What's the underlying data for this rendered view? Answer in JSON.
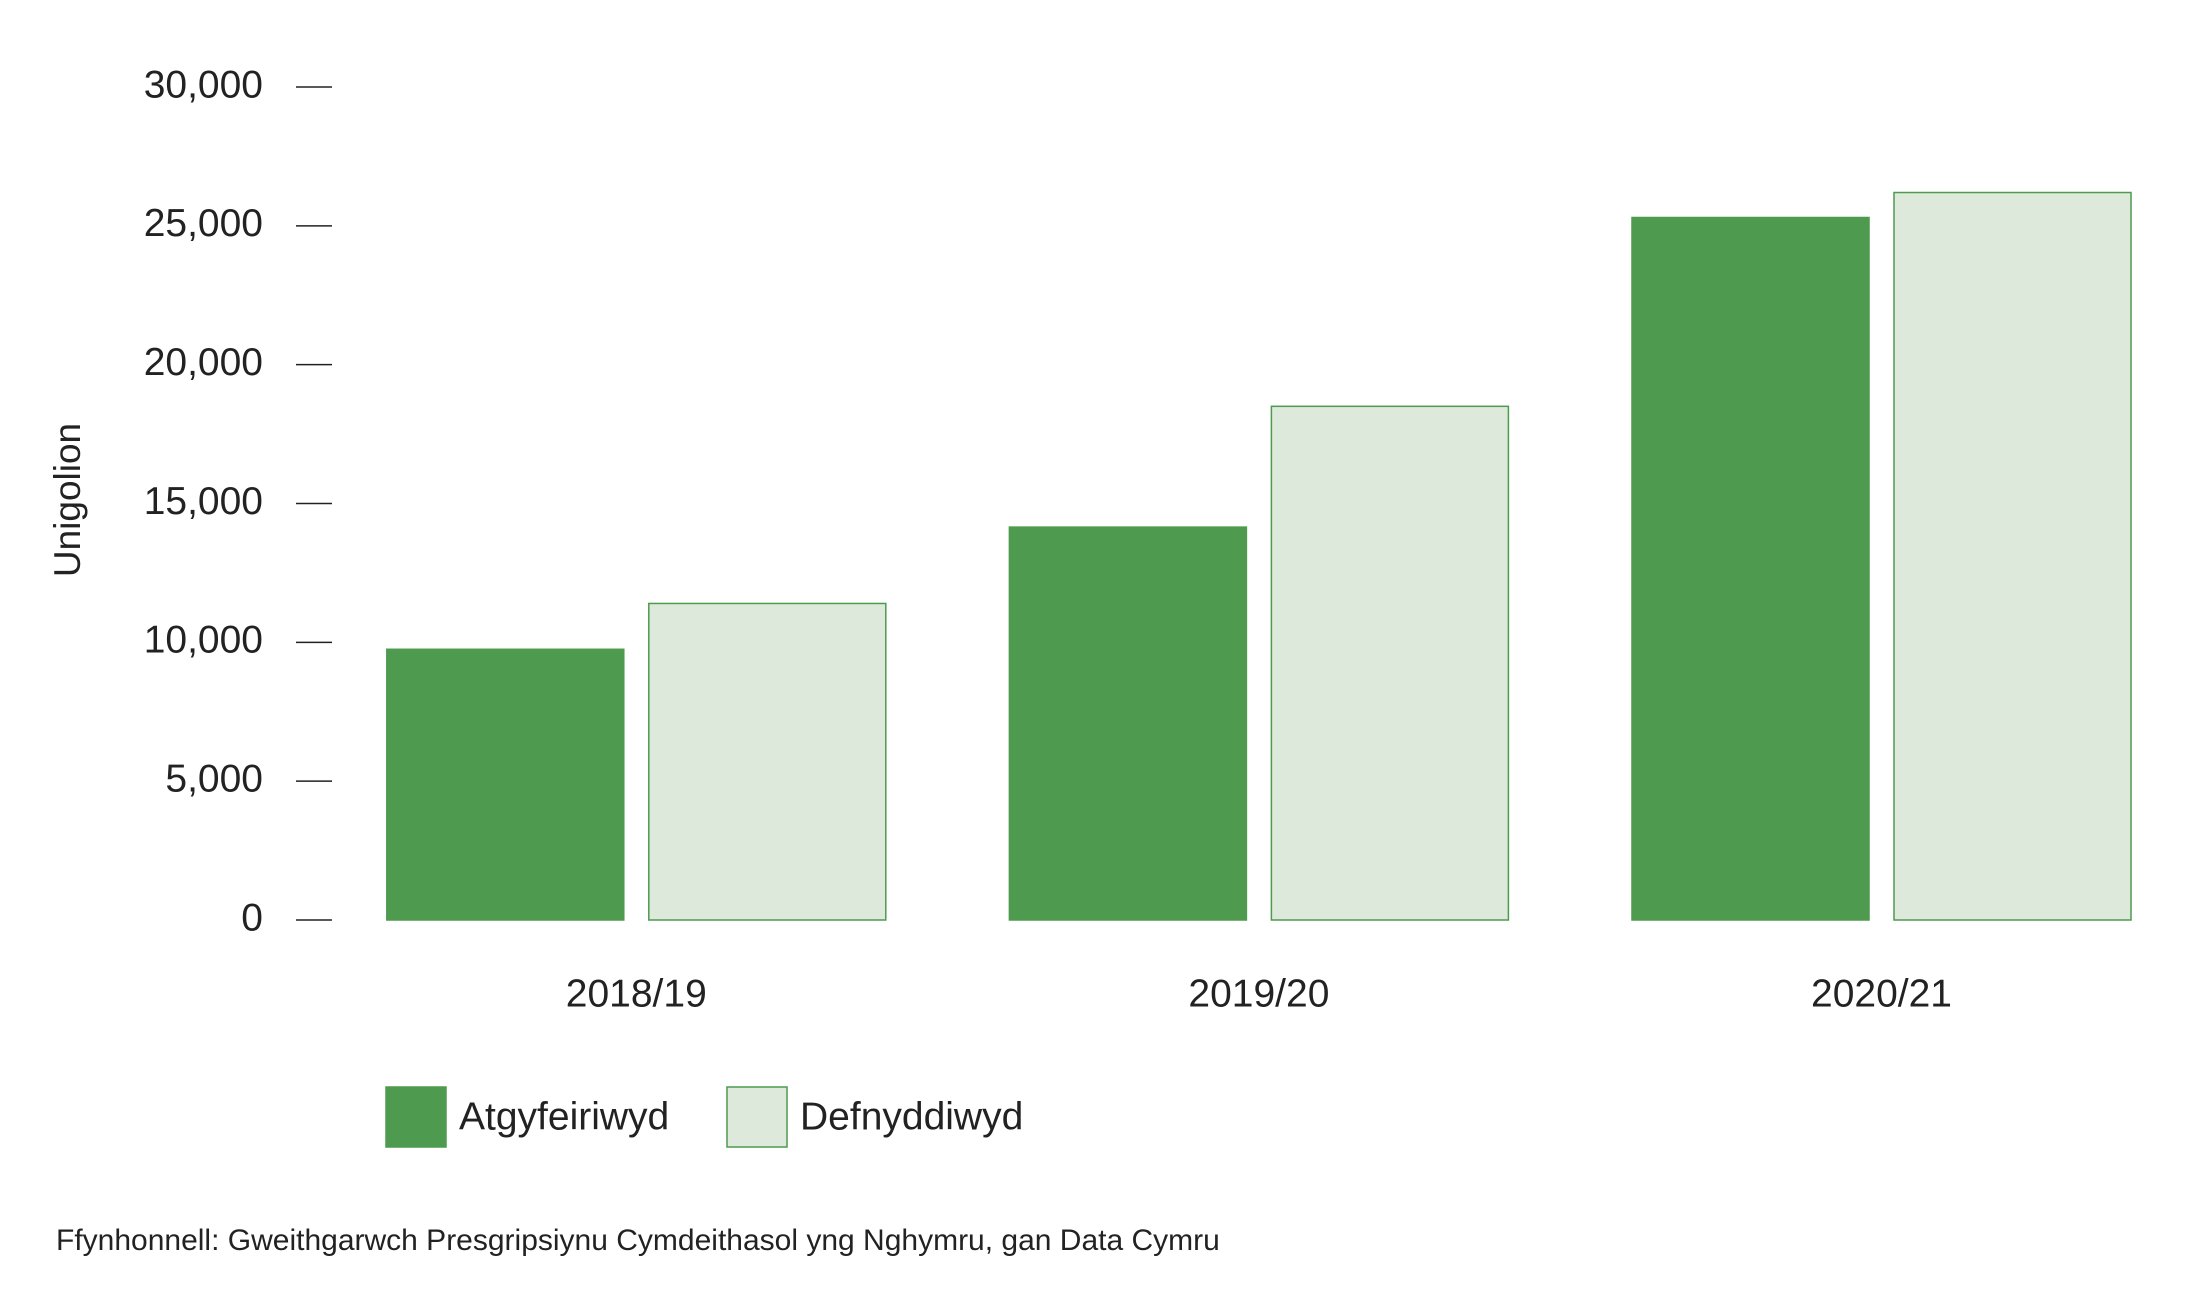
{
  "chart_data": {
    "type": "bar",
    "y_label": "Unigolion",
    "categories": [
      "2018/19",
      "2019/20",
      "2020/21"
    ],
    "series": [
      {
        "name": "Atgyfeiriwyd",
        "color": "#4e9a4e",
        "values": [
          9750,
          14150,
          25300
        ]
      },
      {
        "name": "Defnyddiwyd",
        "color": "#ddeadb",
        "values": [
          11400,
          18500,
          26200
        ]
      }
    ],
    "ylim": [
      0,
      30000
    ],
    "yticks": [
      0,
      {
        "value": 5000,
        "label": "5,000"
      },
      {
        "value": 10000,
        "label": "10,000"
      },
      {
        "value": 15000,
        "label": "15,000"
      },
      {
        "value": 20000,
        "label": "20,000"
      },
      {
        "value": 25000,
        "label": "25,000"
      },
      {
        "value": 30000,
        "label": "30,000"
      }
    ],
    "source": "Ffynhonnell: Gweithgarwch Presgripsiynu Cymdeithasol yng Nghymru, gan Data Cymru"
  }
}
